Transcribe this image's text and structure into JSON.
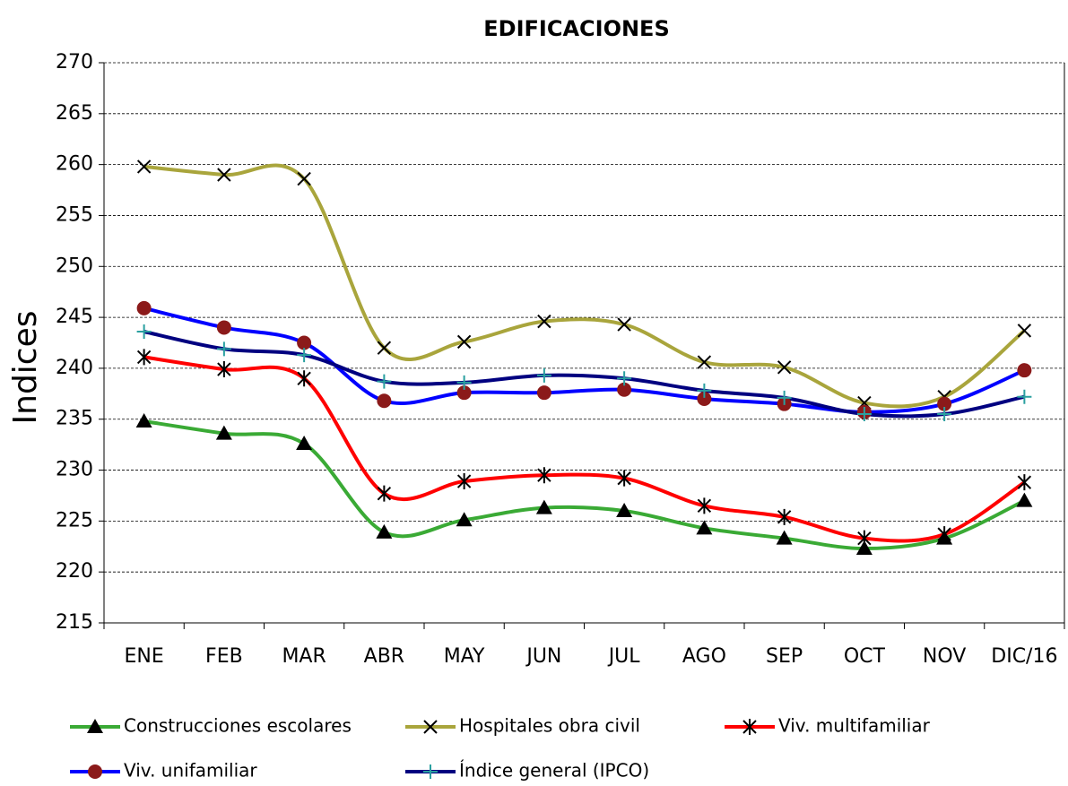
{
  "chart_data": {
    "type": "line",
    "title": "EDIFICACIONES",
    "y_label": "Indices",
    "categories": [
      "ENE",
      "FEB",
      "MAR",
      "ABR",
      "MAY",
      "JUN",
      "JUL",
      "AGO",
      "SEP",
      "OCT",
      "NOV",
      "DIC/16"
    ],
    "series": [
      {
        "name": "Construcciones escolares",
        "color": "#3aaa35",
        "marker": "triangle",
        "marker_color": "#000000",
        "values": [
          234.8,
          233.6,
          232.6,
          223.9,
          225.1,
          226.3,
          226.0,
          224.3,
          223.3,
          222.3,
          223.3,
          227.0
        ]
      },
      {
        "name": "Hospitales obra civil",
        "color": "#a9a53c",
        "marker": "x",
        "marker_color": "#000000",
        "values": [
          259.8,
          259.0,
          258.6,
          242.0,
          242.6,
          244.6,
          244.3,
          240.6,
          240.1,
          236.6,
          237.2,
          243.7
        ]
      },
      {
        "name": "Viv. multifamiliar",
        "color": "#ff0000",
        "marker": "asterisk",
        "marker_color": "#000000",
        "values": [
          241.1,
          239.9,
          239.0,
          227.7,
          228.9,
          229.5,
          229.2,
          226.5,
          225.4,
          223.3,
          223.7,
          228.8
        ]
      },
      {
        "name": "Viv. unifamiliar",
        "color": "#0000ff",
        "marker": "circle",
        "marker_color": "#8b1a1a",
        "values": [
          245.9,
          244.0,
          242.5,
          236.8,
          237.6,
          237.6,
          237.9,
          237.0,
          236.5,
          235.7,
          236.5,
          239.8
        ]
      },
      {
        "name": "Índice general (IPCO)",
        "color": "#000080",
        "marker": "plus",
        "marker_color": "#2aa0a0",
        "values": [
          243.6,
          241.9,
          241.3,
          238.7,
          238.6,
          239.3,
          239.0,
          237.8,
          237.1,
          235.5,
          235.5,
          237.2
        ]
      }
    ],
    "ylim": [
      215,
      270
    ],
    "yticks": [
      215,
      220,
      225,
      230,
      235,
      240,
      245,
      250,
      255,
      260,
      265,
      270
    ],
    "grid": true,
    "smooth": true,
    "legend": "bottom"
  }
}
